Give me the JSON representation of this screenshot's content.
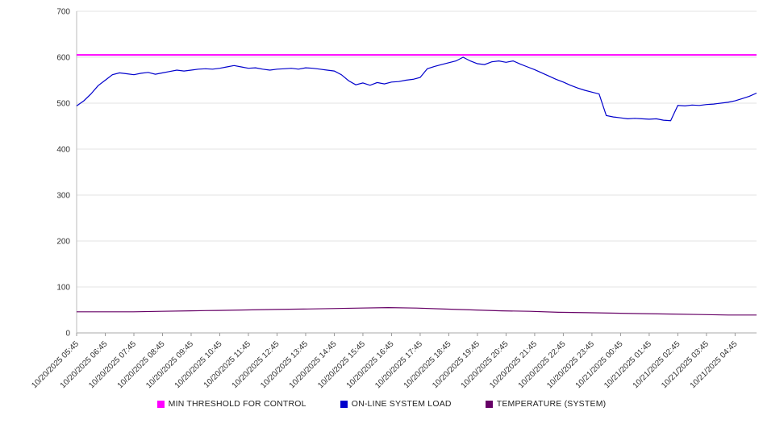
{
  "chart_data": {
    "type": "line",
    "title": "",
    "xlabel": "",
    "ylabel": "",
    "ylim": [
      0,
      700
    ],
    "yticks": [
      0,
      100,
      200,
      300,
      400,
      500,
      600,
      700
    ],
    "grid": true,
    "legend_position": "bottom",
    "label_every_n_points": 4,
    "x_labels": [
      "10/20/2025 05:45",
      "10/20/2025 06:45",
      "10/20/2025 07:45",
      "10/20/2025 08:45",
      "10/20/2025 09:45",
      "10/20/2025 10:45",
      "10/20/2025 11:45",
      "10/20/2025 12:45",
      "10/20/2025 13:45",
      "10/20/2025 14:45",
      "10/20/2025 15:45",
      "10/20/2025 16:45",
      "10/20/2025 17:45",
      "10/20/2025 18:45",
      "10/20/2025 19:45",
      "10/20/2025 20:45",
      "10/20/2025 21:45",
      "10/20/2025 22:45",
      "10/20/2025 23:45",
      "10/21/2025 00:45",
      "10/21/2025 01:45",
      "10/21/2025 02:45",
      "10/21/2025 03:45",
      "10/21/2025 04:45"
    ],
    "series": [
      {
        "name": "MIN THRESHOLD FOR CONTROL",
        "color": "#ff00ff",
        "stroke_width": 2,
        "values": [
          605,
          605
        ]
      },
      {
        "name": "ON-LINE SYSTEM LOAD",
        "color": "#0000cc",
        "stroke_width": 1.2,
        "values": [
          494,
          505,
          520,
          538,
          550,
          562,
          566,
          564,
          562,
          565,
          567,
          563,
          566,
          569,
          572,
          570,
          572,
          574,
          575,
          574,
          576,
          579,
          582,
          579,
          576,
          577,
          574,
          572,
          574,
          575,
          576,
          574,
          577,
          576,
          574,
          572,
          570,
          562,
          549,
          540,
          544,
          539,
          545,
          542,
          546,
          547,
          550,
          552,
          556,
          575,
          580,
          584,
          588,
          592,
          600,
          592,
          586,
          584,
          590,
          592,
          589,
          592,
          585,
          579,
          573,
          566,
          559,
          552,
          546,
          539,
          533,
          528,
          524,
          520,
          473,
          470,
          468,
          466,
          467,
          466,
          465,
          466,
          463,
          462,
          495,
          494,
          496,
          495,
          497,
          498,
          500,
          502,
          505,
          510,
          515,
          522
        ]
      },
      {
        "name": "TEMPERATURE (SYSTEM)",
        "color": "#660066",
        "stroke_width": 1.2,
        "values": [
          46,
          46,
          46,
          47,
          48,
          49,
          50,
          51,
          52,
          53,
          54,
          55,
          54,
          52,
          50,
          48,
          47,
          45,
          44,
          43,
          42,
          41,
          40,
          39,
          39
        ]
      }
    ]
  }
}
